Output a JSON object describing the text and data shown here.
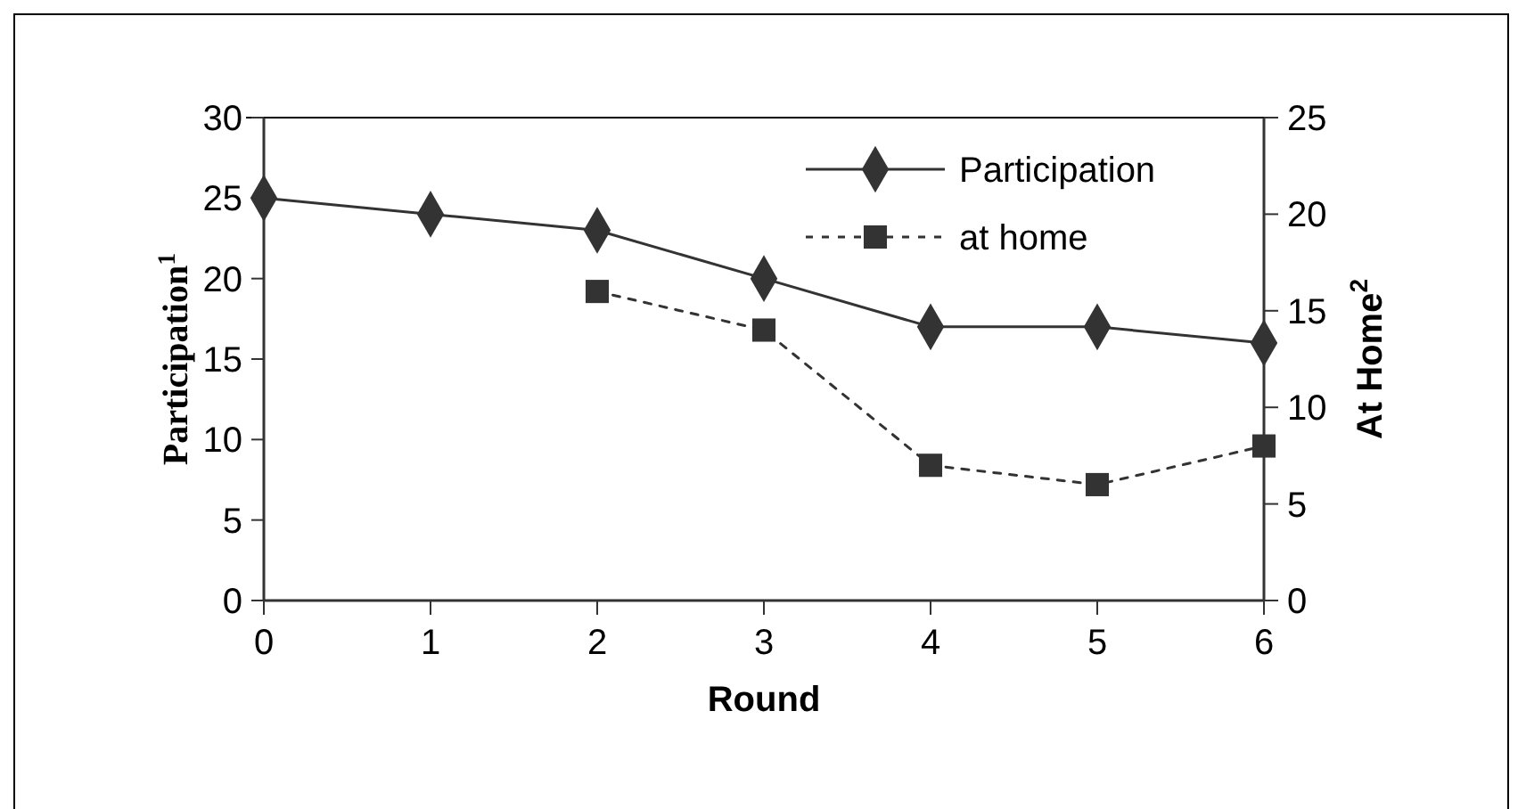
{
  "chart_data": {
    "type": "line",
    "xlabel": "Round",
    "ylabel": "Participation$^{1}$",
    "y2label": "At Home$^{2}$",
    "x": [
      0,
      1,
      2,
      3,
      4,
      5,
      6
    ],
    "series": [
      {
        "name": "Participation",
        "color": "#333333",
        "values": [
          25,
          24,
          23,
          20,
          17,
          17,
          16
        ],
        "marker": "diamond",
        "line_style": "solid"
      },
      {
        "name": "at home",
        "color": "#333333",
        "values": [
          null,
          null,
          16,
          14,
          7,
          6,
          8
        ],
        "marker": "square",
        "line_style": "dashed",
        "axis": "y2"
      }
    ],
    "xlim": [
      0,
      6
    ],
    "xticks": [
      0,
      1,
      2,
      3,
      4,
      5,
      6
    ],
    "ylim": [
      0,
      30
    ],
    "yticks": [
      0,
      5,
      10,
      15,
      20,
      25,
      30
    ],
    "y2lim": [
      0,
      25
    ],
    "y2ticks": [
      0,
      5,
      10,
      15,
      20,
      25
    ],
    "legend": "top right",
    "grid": false
  }
}
